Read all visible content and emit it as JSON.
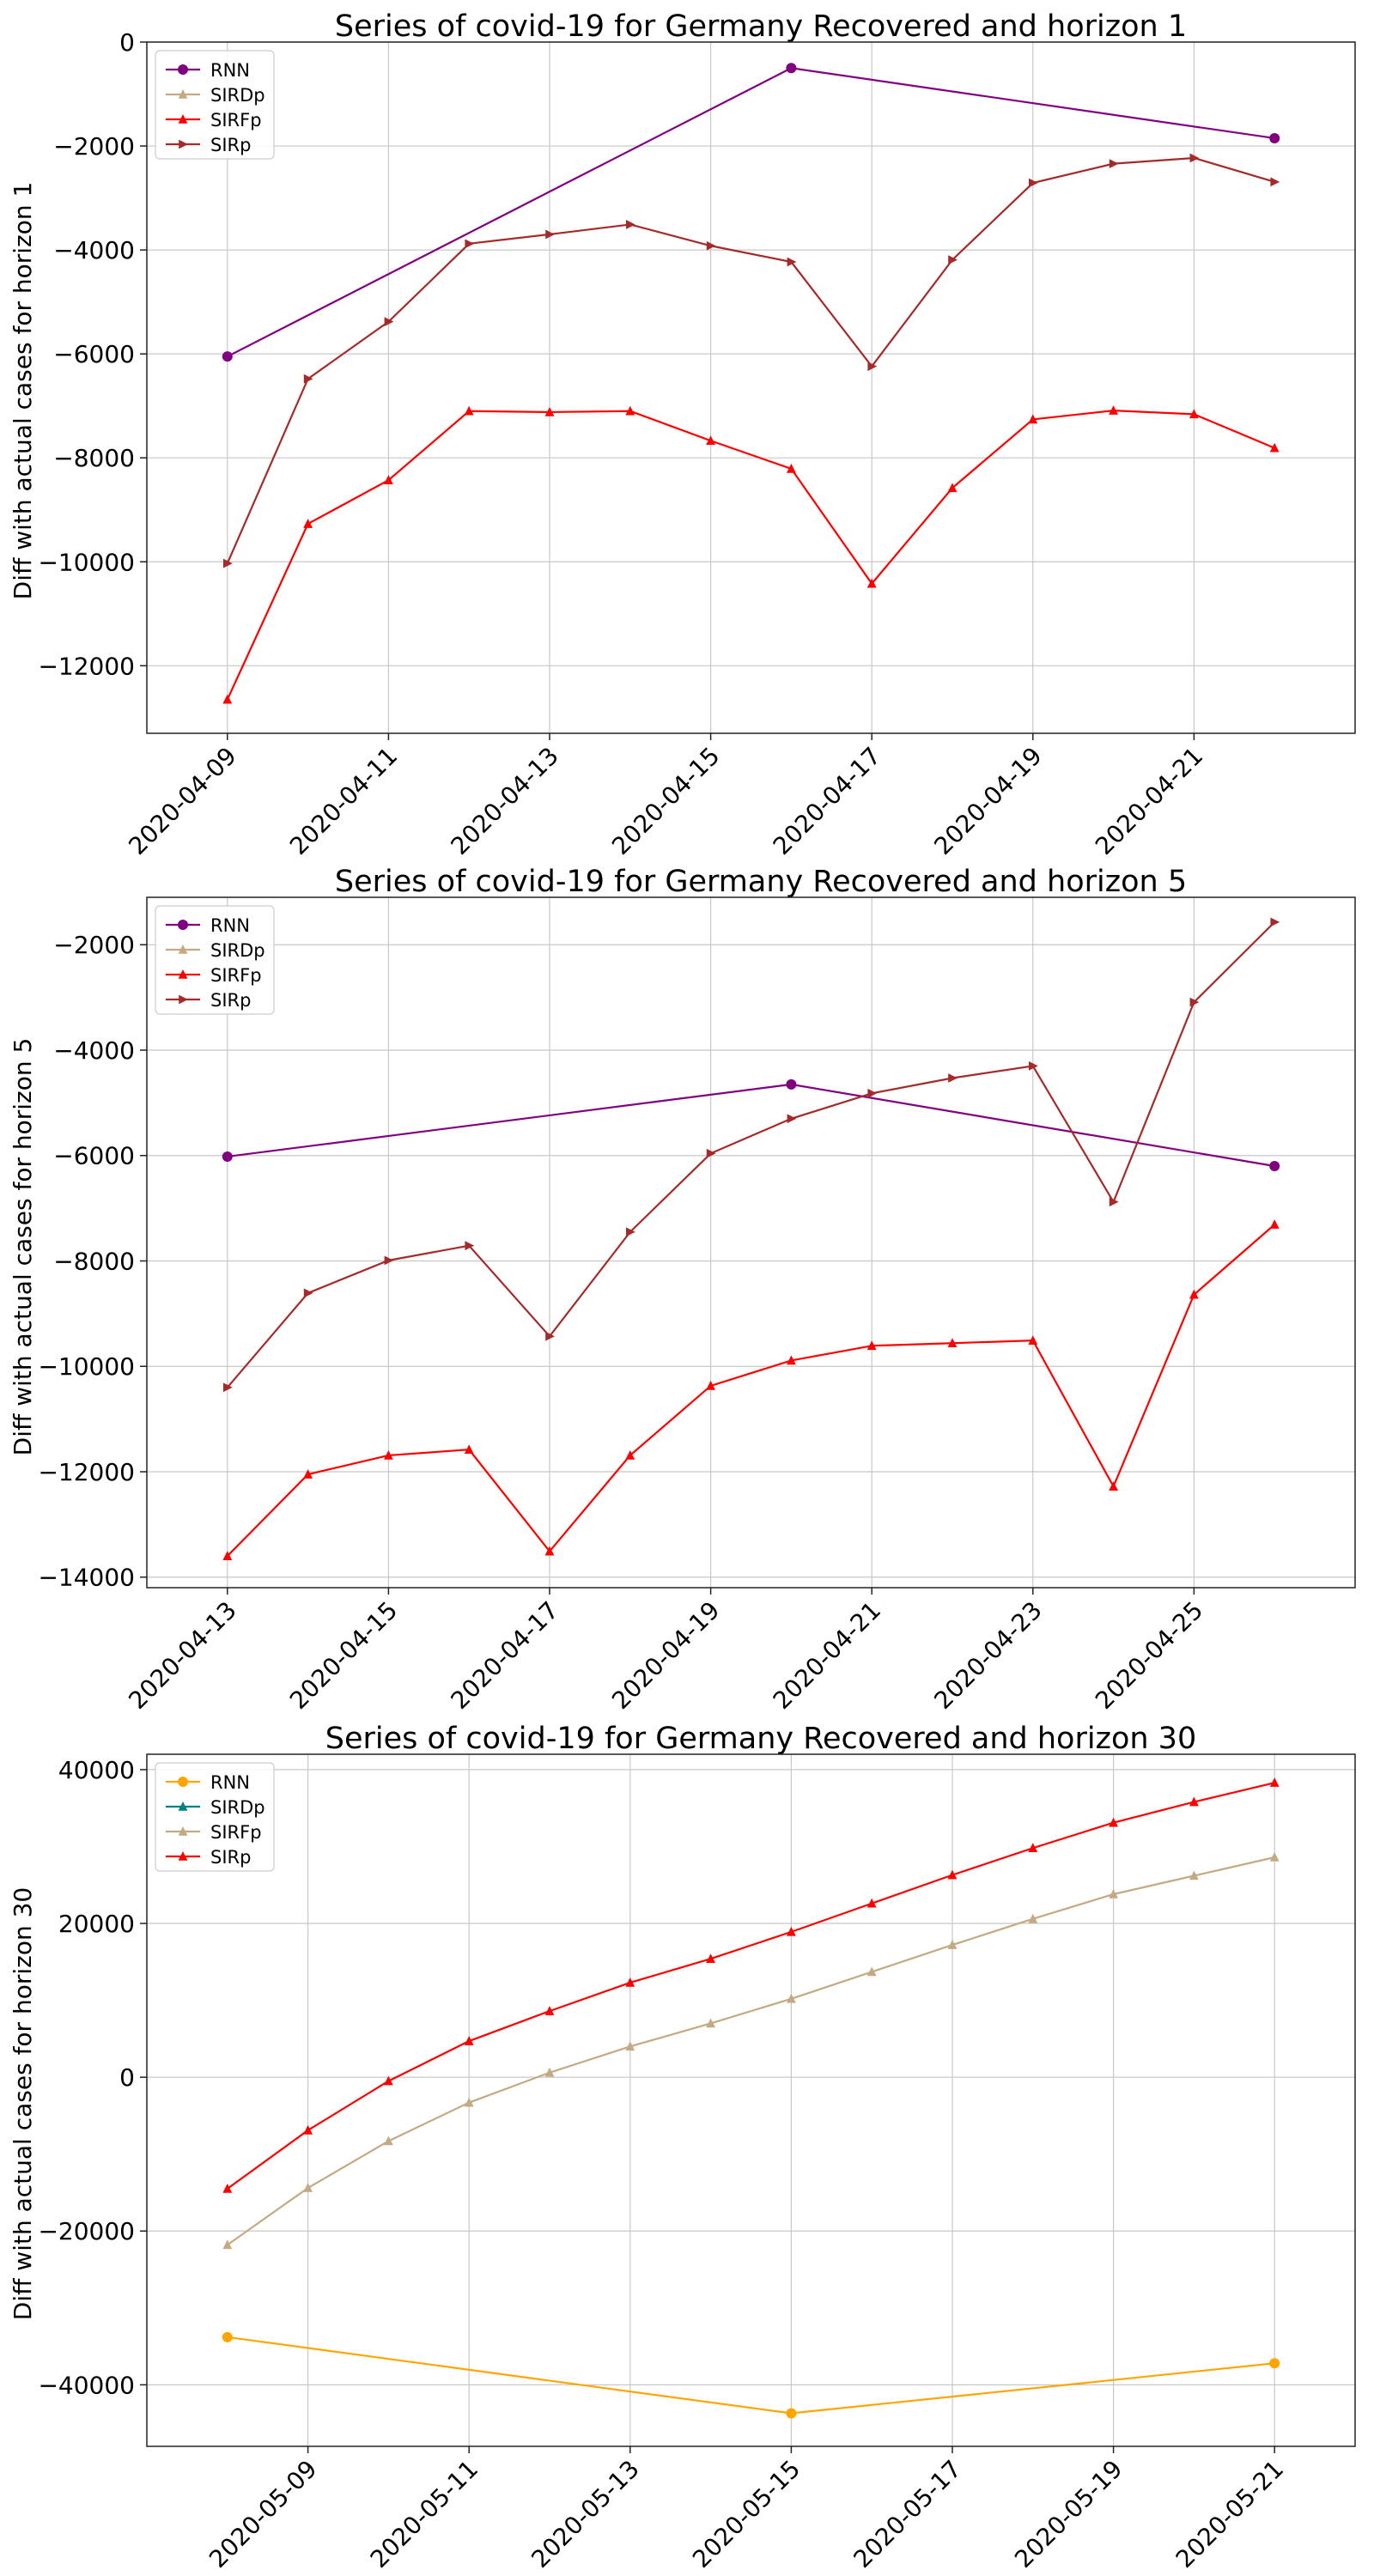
{
  "chart_data": [
    {
      "type": "line",
      "title": "Series of covid-19 for Germany Recovered and horizon 1",
      "xlabel": "",
      "ylabel": "Diff with actual cases for horizon 1",
      "x_axis": "date",
      "xlim": [
        "2020-04-08",
        "2020-04-23"
      ],
      "ylim": [
        -13300,
        0
      ],
      "yticks": [
        0,
        -2000,
        -4000,
        -6000,
        -8000,
        -10000,
        -12000
      ],
      "xticks": [
        "2020-04-09",
        "2020-04-11",
        "2020-04-13",
        "2020-04-15",
        "2020-04-17",
        "2020-04-19",
        "2020-04-21"
      ],
      "grid": true,
      "legend_position": "top-left",
      "series": [
        {
          "name": "RNN",
          "color": "#800080",
          "marker": "circle",
          "x": [
            "2020-04-09",
            "2020-04-16",
            "2020-04-22"
          ],
          "values": [
            -6050,
            -500,
            -1850
          ]
        },
        {
          "name": "SIRDp",
          "color": "#c4aa84",
          "marker": "triangle-up",
          "x": [],
          "values": []
        },
        {
          "name": "SIRFp",
          "color": "#ff0000",
          "marker": "triangle-up",
          "x": [
            "2020-04-09",
            "2020-04-10",
            "2020-04-11",
            "2020-04-12",
            "2020-04-13",
            "2020-04-14",
            "2020-04-15",
            "2020-04-16",
            "2020-04-17",
            "2020-04-18",
            "2020-04-19",
            "2020-04-20",
            "2020-04-21",
            "2020-04-22"
          ],
          "values": [
            -12650,
            -9270,
            -8430,
            -7100,
            -7120,
            -7100,
            -7670,
            -8210,
            -10420,
            -8580,
            -7260,
            -7090,
            -7160,
            -7810
          ]
        },
        {
          "name": "SIRp",
          "color": "#a52a2a",
          "marker": "triangle-right",
          "x": [
            "2020-04-09",
            "2020-04-10",
            "2020-04-11",
            "2020-04-12",
            "2020-04-13",
            "2020-04-14",
            "2020-04-15",
            "2020-04-16",
            "2020-04-17",
            "2020-04-18",
            "2020-04-19",
            "2020-04-20",
            "2020-04-21",
            "2020-04-22"
          ],
          "values": [
            -10030,
            -6480,
            -5380,
            -3880,
            -3700,
            -3510,
            -3920,
            -4230,
            -6240,
            -4190,
            -2710,
            -2340,
            -2230,
            -2690
          ]
        }
      ]
    },
    {
      "type": "line",
      "title": "Series of covid-19 for Germany Recovered and horizon 5",
      "xlabel": "",
      "ylabel": "Diff with actual cases for horizon 5",
      "x_axis": "date",
      "xlim": [
        "2020-04-12",
        "2020-04-27"
      ],
      "ylim": [
        -14200,
        -1100
      ],
      "yticks": [
        -2000,
        -4000,
        -6000,
        -8000,
        -10000,
        -12000,
        -14000
      ],
      "xticks": [
        "2020-04-13",
        "2020-04-15",
        "2020-04-17",
        "2020-04-19",
        "2020-04-21",
        "2020-04-23",
        "2020-04-25"
      ],
      "grid": true,
      "legend_position": "top-left",
      "series": [
        {
          "name": "RNN",
          "color": "#800080",
          "marker": "circle",
          "x": [
            "2020-04-13",
            "2020-04-20",
            "2020-04-26"
          ],
          "values": [
            -6020,
            -4650,
            -6200
          ]
        },
        {
          "name": "SIRDp",
          "color": "#c4aa84",
          "marker": "triangle-up",
          "x": [],
          "values": []
        },
        {
          "name": "SIRFp",
          "color": "#ff0000",
          "marker": "triangle-up",
          "x": [
            "2020-04-13",
            "2020-04-14",
            "2020-04-15",
            "2020-04-16",
            "2020-04-17",
            "2020-04-18",
            "2020-04-19",
            "2020-04-20",
            "2020-04-21",
            "2020-04-22",
            "2020-04-23",
            "2020-04-24",
            "2020-04-25",
            "2020-04-26"
          ],
          "values": [
            -13600,
            -12050,
            -11690,
            -11580,
            -13510,
            -11690,
            -10370,
            -9890,
            -9610,
            -9560,
            -9510,
            -12280,
            -8640,
            -7310
          ]
        },
        {
          "name": "SIRp",
          "color": "#a52a2a",
          "marker": "triangle-right",
          "x": [
            "2020-04-13",
            "2020-04-14",
            "2020-04-15",
            "2020-04-16",
            "2020-04-17",
            "2020-04-18",
            "2020-04-19",
            "2020-04-20",
            "2020-04-21",
            "2020-04-22",
            "2020-04-23",
            "2020-04-24",
            "2020-04-25",
            "2020-04-26"
          ],
          "values": [
            -10400,
            -8610,
            -7990,
            -7710,
            -9430,
            -7450,
            -5960,
            -5300,
            -4820,
            -4530,
            -4300,
            -6880,
            -3090,
            -1570
          ]
        }
      ]
    },
    {
      "type": "line",
      "title": "Series of covid-19 for Germany Recovered and horizon 30",
      "xlabel": "",
      "ylabel": "Diff with actual cases for horizon 30",
      "x_axis": "date",
      "xlim": [
        "2020-05-07",
        "2020-05-22"
      ],
      "ylim": [
        -48000,
        42000
      ],
      "yticks": [
        40000,
        20000,
        0,
        -20000,
        -40000
      ],
      "xticks": [
        "2020-05-09",
        "2020-05-11",
        "2020-05-13",
        "2020-05-15",
        "2020-05-17",
        "2020-05-19",
        "2020-05-21"
      ],
      "grid": true,
      "legend_position": "top-left",
      "series": [
        {
          "name": "RNN",
          "color": "#ffa500",
          "marker": "circle",
          "x": [
            "2020-05-08",
            "2020-05-15",
            "2020-05-21"
          ],
          "values": [
            -33800,
            -43700,
            -37200
          ]
        },
        {
          "name": "SIRDp",
          "color": "#008080",
          "marker": "triangle-up",
          "x": [],
          "values": []
        },
        {
          "name": "SIRFp",
          "color": "#c4aa84",
          "marker": "triangle-up",
          "x": [
            "2020-05-08",
            "2020-05-09",
            "2020-05-10",
            "2020-05-11",
            "2020-05-12",
            "2020-05-13",
            "2020-05-14",
            "2020-05-15",
            "2020-05-16",
            "2020-05-17",
            "2020-05-18",
            "2020-05-19",
            "2020-05-20",
            "2020-05-21"
          ],
          "values": [
            -21800,
            -14400,
            -8300,
            -3300,
            600,
            4000,
            7000,
            10200,
            13700,
            17200,
            20600,
            23800,
            26200,
            28600
          ]
        },
        {
          "name": "SIRp",
          "color": "#ff0000",
          "marker": "triangle-up",
          "x": [
            "2020-05-08",
            "2020-05-09",
            "2020-05-10",
            "2020-05-11",
            "2020-05-12",
            "2020-05-13",
            "2020-05-14",
            "2020-05-15",
            "2020-05-16",
            "2020-05-17",
            "2020-05-18",
            "2020-05-19",
            "2020-05-20",
            "2020-05-21"
          ],
          "values": [
            -14500,
            -6900,
            -500,
            4700,
            8600,
            12300,
            15400,
            18900,
            22600,
            26300,
            29800,
            33100,
            35800,
            38300
          ]
        }
      ]
    }
  ]
}
